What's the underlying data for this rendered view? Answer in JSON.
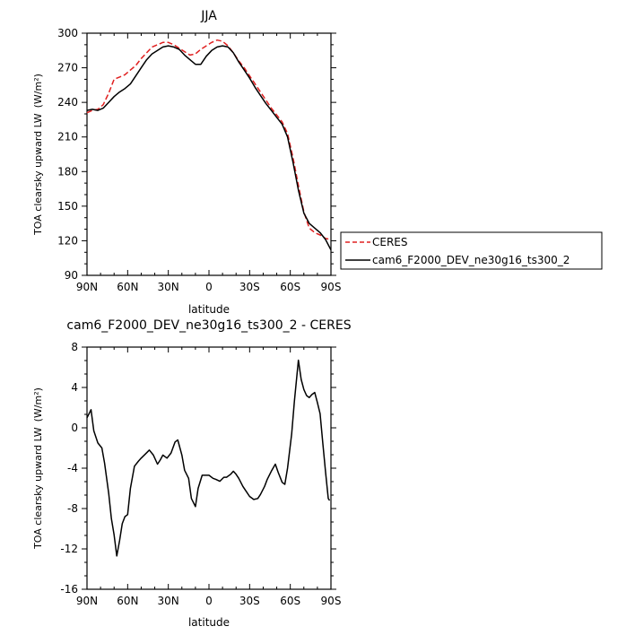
{
  "chart_data": [
    {
      "type": "line",
      "title": "JJA",
      "xlabel": "latitude",
      "ylabel_main": "TOA clearsky upward LW",
      "ylabel_units": "(W/m²)",
      "xlim": [
        90,
        -90
      ],
      "ylim": [
        90,
        300
      ],
      "x_ticks": [
        90,
        60,
        30,
        0,
        -30,
        -60,
        -90
      ],
      "x_tick_labels": [
        "90N",
        "60N",
        "30N",
        "0",
        "30S",
        "60S",
        "90S"
      ],
      "y_ticks": [
        90,
        120,
        150,
        180,
        210,
        240,
        270,
        300
      ],
      "y_tick_labels": [
        "90",
        "120",
        "150",
        "180",
        "210",
        "240",
        "270",
        "300"
      ],
      "legend_placement": "right-middle",
      "series": [
        {
          "name": "CERES",
          "color": "#e02020",
          "dash": "dashed",
          "x": [
            90,
            86,
            82,
            78,
            74,
            70,
            66,
            62,
            58,
            54,
            50,
            46,
            42,
            38,
            34,
            30,
            26,
            22,
            18,
            14,
            10,
            6,
            2,
            -2,
            -6,
            -10,
            -14,
            -18,
            -22,
            -26,
            -30,
            -34,
            -38,
            -42,
            -46,
            -50,
            -54,
            -58,
            -62,
            -66,
            -70,
            -74,
            -78,
            -82,
            -86,
            -90
          ],
          "y": [
            231,
            233,
            234,
            238,
            248,
            260,
            262,
            264,
            268,
            272,
            278,
            283,
            288,
            290,
            292,
            292,
            290,
            287,
            284,
            281,
            282,
            286,
            289,
            292,
            294,
            293,
            289,
            283,
            276,
            270,
            263,
            256,
            249,
            242,
            235,
            229,
            223,
            213,
            192,
            168,
            145,
            131,
            127,
            125,
            122,
            121
          ]
        },
        {
          "name": "cam6_F2000_DEV_ne30g16_ts300_2",
          "color": "#000000",
          "dash": "solid",
          "x": [
            90,
            86,
            82,
            78,
            74,
            70,
            66,
            62,
            58,
            54,
            50,
            46,
            42,
            38,
            34,
            30,
            26,
            22,
            18,
            14,
            10,
            6,
            2,
            -2,
            -6,
            -10,
            -14,
            -18,
            -22,
            -26,
            -30,
            -34,
            -38,
            -42,
            -46,
            -50,
            -54,
            -58,
            -62,
            -66,
            -70,
            -74,
            -78,
            -82,
            -86,
            -90
          ],
          "y": [
            233,
            234,
            233,
            235,
            240,
            245,
            249,
            252,
            256,
            263,
            270,
            277,
            282,
            285,
            288,
            289,
            288,
            286,
            281,
            277,
            273,
            273,
            280,
            285,
            288,
            289,
            288,
            283,
            275,
            268,
            261,
            253,
            246,
            239,
            233,
            227,
            221,
            210,
            188,
            164,
            144,
            135,
            131,
            127,
            121,
            112
          ]
        }
      ]
    },
    {
      "type": "line",
      "title": "cam6_F2000_DEV_ne30g16_ts300_2 - CERES",
      "xlabel": "latitude",
      "ylabel_main": "TOA clearsky upward LW",
      "ylabel_units": "(W/m²)",
      "xlim": [
        90,
        -90
      ],
      "ylim": [
        -16,
        8
      ],
      "x_ticks": [
        90,
        60,
        30,
        0,
        -30,
        -60,
        -90
      ],
      "x_tick_labels": [
        "90N",
        "60N",
        "30N",
        "0",
        "30S",
        "60S",
        "90S"
      ],
      "y_ticks": [
        -16,
        -12,
        -8,
        -4,
        0,
        4,
        8
      ],
      "y_tick_labels": [
        "-16",
        "-12",
        "-8",
        "-4",
        "0",
        "4",
        "8"
      ],
      "series": [
        {
          "color": "#000000",
          "dash": "solid",
          "x": [
            90,
            87,
            85,
            82,
            79,
            77,
            74,
            72,
            70,
            68,
            66,
            64,
            62,
            60,
            58,
            55,
            52,
            50,
            47,
            44,
            41,
            38,
            36,
            34,
            31,
            28,
            25,
            23,
            20,
            18,
            15,
            13,
            10,
            8,
            5,
            3,
            0,
            -3,
            -5,
            -8,
            -11,
            -13,
            -16,
            -18,
            -20,
            -22,
            -25,
            -27,
            -30,
            -33,
            -36,
            -38,
            -41,
            -43,
            -46,
            -49,
            -51,
            -54,
            -56,
            -58,
            -61,
            -63,
            -66,
            -68,
            -70,
            -72,
            -74,
            -76,
            -78,
            -80,
            -82,
            -84,
            -86,
            -88,
            -89
          ],
          "y": [
            1.0,
            1.8,
            -0.3,
            -1.5,
            -2.0,
            -3.5,
            -6.5,
            -9.0,
            -10.6,
            -12.7,
            -11.2,
            -9.5,
            -8.8,
            -8.6,
            -6.0,
            -3.8,
            -3.3,
            -3.0,
            -2.6,
            -2.2,
            -2.7,
            -3.6,
            -3.2,
            -2.7,
            -3.0,
            -2.5,
            -1.4,
            -1.2,
            -2.7,
            -4.2,
            -5.0,
            -7.0,
            -7.8,
            -6.0,
            -4.7,
            -4.7,
            -4.7,
            -5.0,
            -5.1,
            -5.3,
            -4.9,
            -4.9,
            -4.6,
            -4.3,
            -4.6,
            -5.0,
            -5.8,
            -6.2,
            -6.8,
            -7.1,
            -7.0,
            -6.6,
            -5.8,
            -5.1,
            -4.3,
            -3.6,
            -4.4,
            -5.4,
            -5.6,
            -4.0,
            -0.6,
            2.6,
            6.7,
            4.8,
            3.8,
            3.2,
            3.0,
            3.3,
            3.5,
            2.5,
            1.4,
            -1.5,
            -4.4,
            -7.0,
            -7.2
          ]
        }
      ]
    }
  ]
}
